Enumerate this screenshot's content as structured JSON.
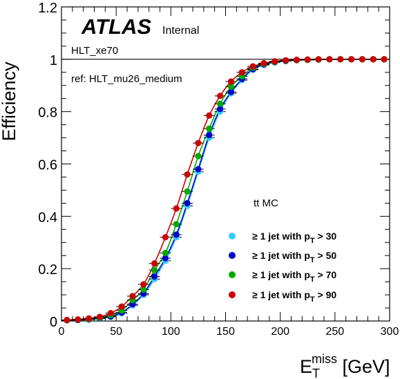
{
  "chart_data": {
    "type": "scatter",
    "title": "",
    "xlabel": {
      "main": "E",
      "sub": "T",
      "sup": "miss",
      "unit": " [GeV]"
    },
    "ylabel": "Efficiency",
    "xlim": [
      0,
      300
    ],
    "ylim": [
      0,
      1.2
    ],
    "x_ticks": [
      0,
      50,
      100,
      150,
      200,
      250,
      300
    ],
    "x_tick_labels": [
      "0",
      "50",
      "100",
      "150",
      "200",
      "250",
      "300"
    ],
    "y_ticks": [
      0,
      0.2,
      0.4,
      0.6,
      0.8,
      1,
      1.2
    ],
    "y_tick_labels": [
      "0",
      "0.2",
      "0.4",
      "0.6",
      "0.8",
      "1",
      "1.2"
    ],
    "reference_line": 1,
    "grid": false,
    "legend_position": "bottom-right",
    "x": [
      5,
      15,
      25,
      35,
      45,
      55,
      65,
      75,
      85,
      95,
      105,
      115,
      125,
      135,
      145,
      155,
      165,
      175,
      185,
      195,
      205,
      215,
      225,
      235,
      245,
      255,
      265,
      275,
      285,
      295
    ],
    "series": [
      {
        "name": "≥ 1 jet with p_T > 30",
        "color": "#33ccff",
        "values": [
          0.003,
          0.004,
          0.006,
          0.01,
          0.016,
          0.03,
          0.06,
          0.1,
          0.16,
          0.23,
          0.32,
          0.44,
          0.57,
          0.7,
          0.8,
          0.87,
          0.92,
          0.96,
          0.978,
          0.988,
          0.993,
          0.996,
          0.998,
          0.999,
          1.0,
          1.0,
          1.0,
          1.0,
          1.0,
          1.0
        ]
      },
      {
        "name": "≥ 1 jet with p_T > 50",
        "color": "#0000cc",
        "values": [
          0.003,
          0.004,
          0.006,
          0.01,
          0.017,
          0.032,
          0.064,
          0.105,
          0.17,
          0.24,
          0.33,
          0.45,
          0.58,
          0.71,
          0.81,
          0.875,
          0.925,
          0.962,
          0.98,
          0.989,
          0.994,
          0.997,
          0.998,
          0.999,
          1.0,
          1.0,
          1.0,
          1.0,
          1.0,
          1.0
        ]
      },
      {
        "name": "≥ 1 jet with p_T > 70",
        "color": "#00aa00",
        "values": [
          0.003,
          0.005,
          0.007,
          0.012,
          0.022,
          0.04,
          0.08,
          0.12,
          0.195,
          0.26,
          0.37,
          0.495,
          0.63,
          0.735,
          0.83,
          0.895,
          0.935,
          0.968,
          0.982,
          0.99,
          0.995,
          0.997,
          0.998,
          0.999,
          1.0,
          1.0,
          1.0,
          1.0,
          1.0,
          1.0
        ]
      },
      {
        "name": "≥ 1 jet with p_T > 90",
        "color": "#cc0000",
        "values": [
          0.004,
          0.006,
          0.01,
          0.016,
          0.03,
          0.055,
          0.095,
          0.14,
          0.22,
          0.32,
          0.43,
          0.56,
          0.68,
          0.785,
          0.86,
          0.915,
          0.95,
          0.973,
          0.985,
          0.992,
          0.996,
          0.998,
          0.999,
          1.0,
          1.0,
          1.0,
          1.0,
          1.0,
          1.0,
          1.0
        ]
      }
    ]
  },
  "legend": {
    "header": "tt MC",
    "entries": [
      {
        "prefix": "≥ 1 jet with p",
        "sub": "T",
        "suffix": " > 30"
      },
      {
        "prefix": "≥ 1 jet with p",
        "sub": "T",
        "suffix": " > 50"
      },
      {
        "prefix": "≥ 1 jet with p",
        "sub": "T",
        "suffix": " > 70"
      },
      {
        "prefix": "≥ 1 jet with p",
        "sub": "T",
        "suffix": " > 90"
      }
    ]
  },
  "labels": {
    "atlas": "ATLAS",
    "internal": "Internal",
    "trigger": "HLT_xe70",
    "reference": "ref: HLT_mu26_medium"
  }
}
